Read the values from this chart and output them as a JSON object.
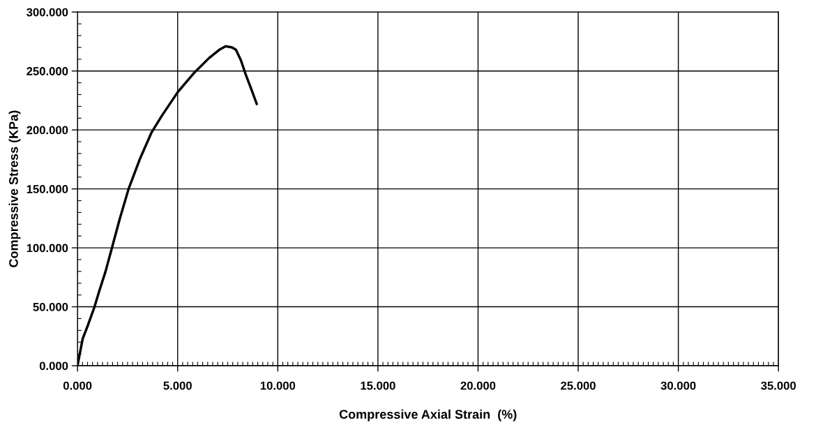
{
  "chart_data": {
    "type": "line",
    "xlabel": "Compressive Axial Strain  (%)",
    "ylabel": "Compressive Stress (KPa)",
    "x": [
      0,
      0.1,
      0.26,
      0.51,
      0.83,
      1.08,
      1.4,
      1.72,
      2.1,
      2.55,
      3.13,
      3.7,
      4.21,
      5.0,
      5.8,
      6.57,
      7.08,
      7.4,
      7.72,
      7.91,
      8.16,
      8.42,
      8.67,
      8.95
    ],
    "series": [
      {
        "color": "#000000",
        "values": [
          0,
          9,
          23,
          34,
          49,
          63,
          80,
          100,
          124,
          150,
          176,
          198,
          212,
          232,
          248,
          261,
          268,
          271,
          270,
          268,
          259,
          246,
          235,
          222
        ]
      }
    ],
    "xlim": [
      0,
      35
    ],
    "ylim": [
      0,
      300
    ],
    "xticks": [
      {
        "value": 0,
        "label": "0.000"
      },
      {
        "value": 5,
        "label": "5.000"
      },
      {
        "value": 10,
        "label": "10.000"
      },
      {
        "value": 15,
        "label": "15.000"
      },
      {
        "value": 20,
        "label": "20.000"
      },
      {
        "value": 25,
        "label": "25.000"
      },
      {
        "value": 30,
        "label": "30.000"
      },
      {
        "value": 35,
        "label": "35.000"
      }
    ],
    "yticks": [
      {
        "value": 0,
        "label": "0.000"
      },
      {
        "value": 50,
        "label": "50.000"
      },
      {
        "value": 100,
        "label": "100.000"
      },
      {
        "value": 150,
        "label": "150.000"
      },
      {
        "value": 200,
        "label": "200.000"
      },
      {
        "value": 250,
        "label": "250.000"
      },
      {
        "value": 300,
        "label": "300.000"
      }
    ],
    "grid": true,
    "marker": "none",
    "line_style": "solid"
  }
}
